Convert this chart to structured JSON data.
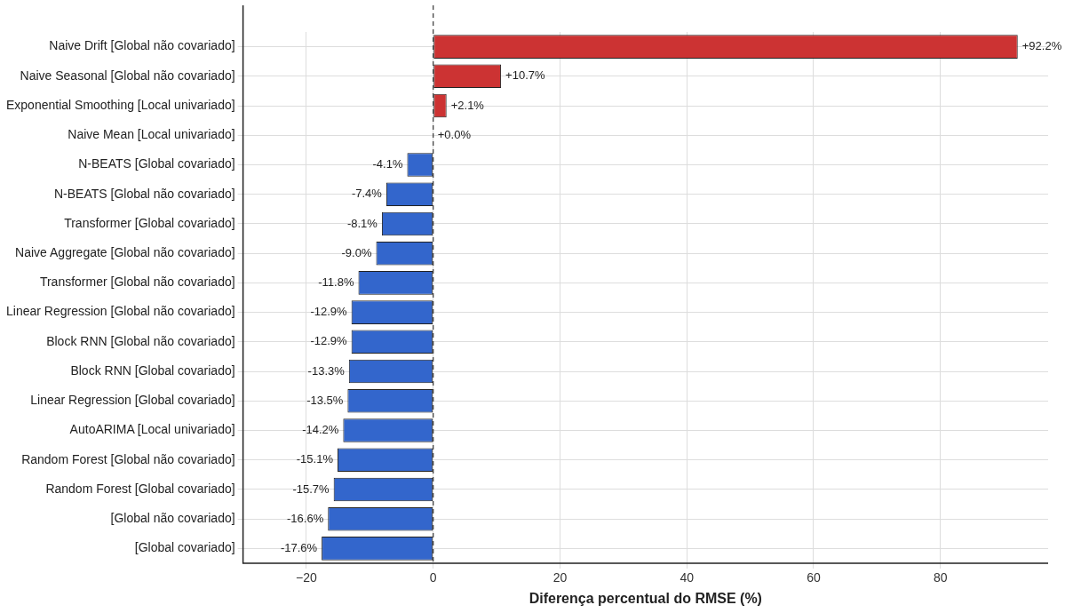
{
  "chart_data": {
    "type": "bar",
    "orientation": "horizontal",
    "xlabel": "Diferença percentual do RMSE (%)",
    "categories": [
      "Naive Drift [Global não covariado]",
      "Naive Seasonal [Global não covariado]",
      "Exponential Smoothing [Local univariado]",
      "Naive Mean [Local univariado]",
      "N-BEATS [Global covariado]",
      "N-BEATS [Global não covariado]",
      "Transformer [Global covariado]",
      "Naive Aggregate [Global não covariado]",
      "Transformer [Global não covariado]",
      "Linear Regression [Global não covariado]",
      "Block RNN [Global não covariado]",
      "Block RNN [Global covariado]",
      "Linear Regression [Global covariado]",
      "AutoARIMA [Local univariado]",
      "Random Forest [Global não covariado]",
      "Random Forest [Global covariado]",
      "[Global não covariado]",
      "[Global covariado]"
    ],
    "values": [
      92.2,
      10.7,
      2.1,
      0.0,
      -4.1,
      -7.4,
      -8.1,
      -9.0,
      -11.8,
      -12.9,
      -12.9,
      -13.3,
      -13.5,
      -14.2,
      -15.1,
      -15.7,
      -16.6,
      -17.6
    ],
    "colors": [
      "#cc3333",
      "#cc3333",
      "#cc3333",
      "#cc3333",
      "#3366cc",
      "#3366cc",
      "#3366cc",
      "#3366cc",
      "#3366cc",
      "#3366cc",
      "#3366cc",
      "#3366cc",
      "#3366cc",
      "#3366cc",
      "#3366cc",
      "#3366cc",
      "#3366cc",
      "#3366cc"
    ],
    "value_labels": [
      "+92.2%",
      "+10.7%",
      "+2.1%",
      "+0.0%",
      "-4.1%",
      "-7.4%",
      "-8.1%",
      "-9.0%",
      "-11.8%",
      "-12.9%",
      "-12.9%",
      "-13.3%",
      "-13.5%",
      "-14.2%",
      "-15.1%",
      "-15.7%",
      "-16.6%",
      "-17.6%"
    ],
    "xlim": [
      -30,
      97
    ],
    "xticks": [
      {
        "value": -20,
        "label": "−20"
      },
      0,
      20,
      40,
      60,
      80
    ],
    "ref_lines": [
      {
        "axis": "x",
        "value": 0,
        "color": "#333333",
        "line_style": "dashed"
      }
    ],
    "grid": true,
    "legend": false
  }
}
